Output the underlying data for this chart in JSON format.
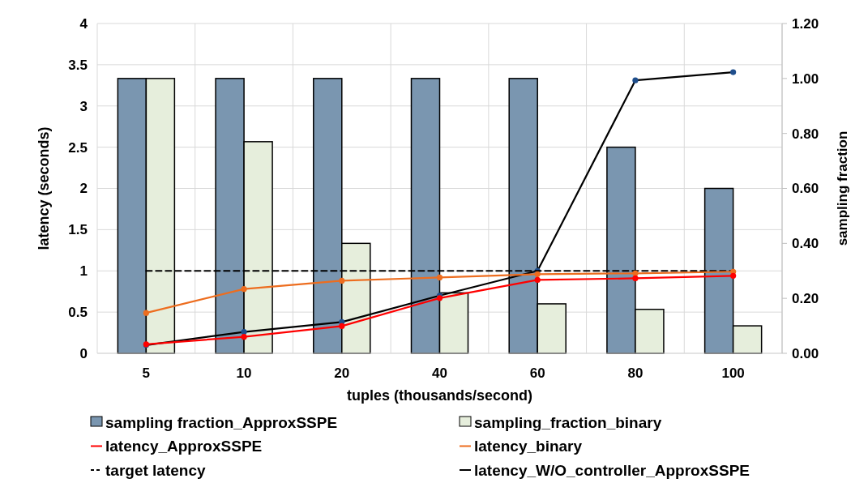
{
  "chart_data": {
    "type": "bar",
    "xlabel": "tuples (thousands/second)",
    "ylabel": "latency (seconds)",
    "y2label": "sampling fraction",
    "categories": [
      "5",
      "10",
      "20",
      "40",
      "60",
      "80",
      "100"
    ],
    "series": [
      {
        "name": "sampling fraction_ApproxSSPE",
        "axis": "y2",
        "color": "#7a96b0",
        "values": [
          1.0,
          1.0,
          1.0,
          1.0,
          1.0,
          0.75,
          0.6
        ]
      },
      {
        "name": "sampling_fraction_binary",
        "axis": "y2",
        "color": "#e6eedc",
        "values": [
          1.0,
          0.77,
          0.4,
          0.22,
          0.18,
          0.16,
          0.1
        ]
      },
      {
        "name": "latency_ApproxSSPE",
        "type": "line",
        "color": "#ff0000",
        "marker": "circle",
        "values": [
          0.11,
          0.2,
          0.33,
          0.67,
          0.89,
          0.91,
          0.94
        ]
      },
      {
        "name": "latency_binary",
        "type": "line",
        "color": "#ed6d1f",
        "marker": "circle",
        "values": [
          0.49,
          0.78,
          0.88,
          0.92,
          0.96,
          0.97,
          0.99
        ]
      },
      {
        "name": "target latency",
        "type": "line",
        "color": "#000000",
        "line_style": "dashed",
        "marker": "none",
        "values": [
          1,
          1,
          1,
          1,
          1,
          1,
          1
        ]
      },
      {
        "name": "latency_W/O_controller_ApproxSSPE",
        "type": "line",
        "color": "#000000",
        "marker": "circle",
        "values": [
          0.1,
          0.26,
          0.38,
          0.7,
          1.0,
          3.31,
          3.41
        ]
      }
    ],
    "ylim": [
      0,
      4
    ],
    "yticks": [
      0,
      0.5,
      1,
      1.5,
      2,
      2.5,
      3,
      3.5,
      4
    ],
    "y2lim": [
      0,
      1.2
    ],
    "y2ticks": [
      {
        "value": 0,
        "label": "0.00"
      },
      {
        "value": 0.2,
        "label": "0.20"
      },
      {
        "value": 0.4,
        "label": "0.40"
      },
      {
        "value": 0.6,
        "label": "0.60"
      },
      {
        "value": 0.8,
        "label": "0.80"
      },
      {
        "value": 1.0,
        "label": "1.00"
      },
      {
        "value": 1.2,
        "label": "1.20"
      }
    ],
    "grid": true,
    "legend": "bottom"
  }
}
